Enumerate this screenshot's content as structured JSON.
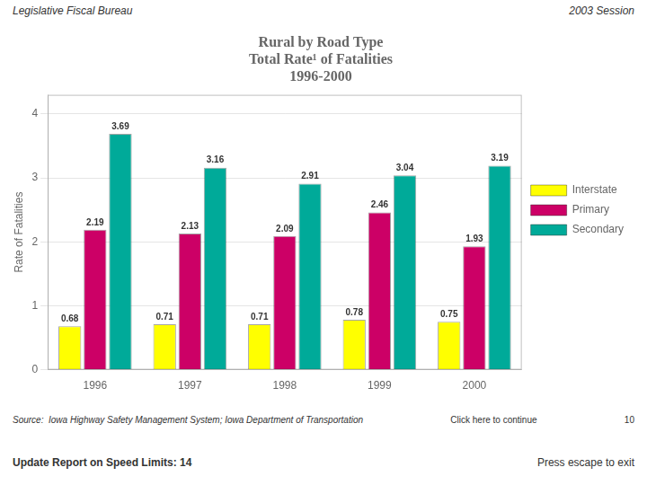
{
  "chart_data": {
    "type": "bar",
    "title": [
      "Rural by Road Type",
      "Total Rate¹ of Fatalities",
      "1996-2000"
    ],
    "categories": [
      "1996",
      "1997",
      "1998",
      "1999",
      "2000"
    ],
    "series": [
      {
        "name": "Interstate",
        "color": "#FFFF00",
        "values": [
          0.68,
          0.71,
          0.71,
          0.78,
          0.75
        ]
      },
      {
        "name": "Primary",
        "color": "#CC0066",
        "values": [
          2.19,
          2.13,
          2.09,
          2.46,
          1.93
        ]
      },
      {
        "name": "Secondary",
        "color": "#00AA99",
        "values": [
          3.69,
          3.16,
          2.91,
          3.04,
          3.19
        ]
      }
    ],
    "y_label": "Rate of Fatalities",
    "ylim": [
      0,
      4.3
    ],
    "yticks": [
      0,
      1,
      2,
      3,
      4
    ],
    "grid": true,
    "legend": "right",
    "data_labels": true,
    "annotations": [
      "Legislative Fiscal Bureau",
      "2003 Session",
      "Source:  Iowa Highway Safety Management System; Iowa Department of Transportation",
      "Click here to continue",
      "10",
      "Update Report on Speed Limits:  14",
      "Press escape to exit"
    ]
  }
}
